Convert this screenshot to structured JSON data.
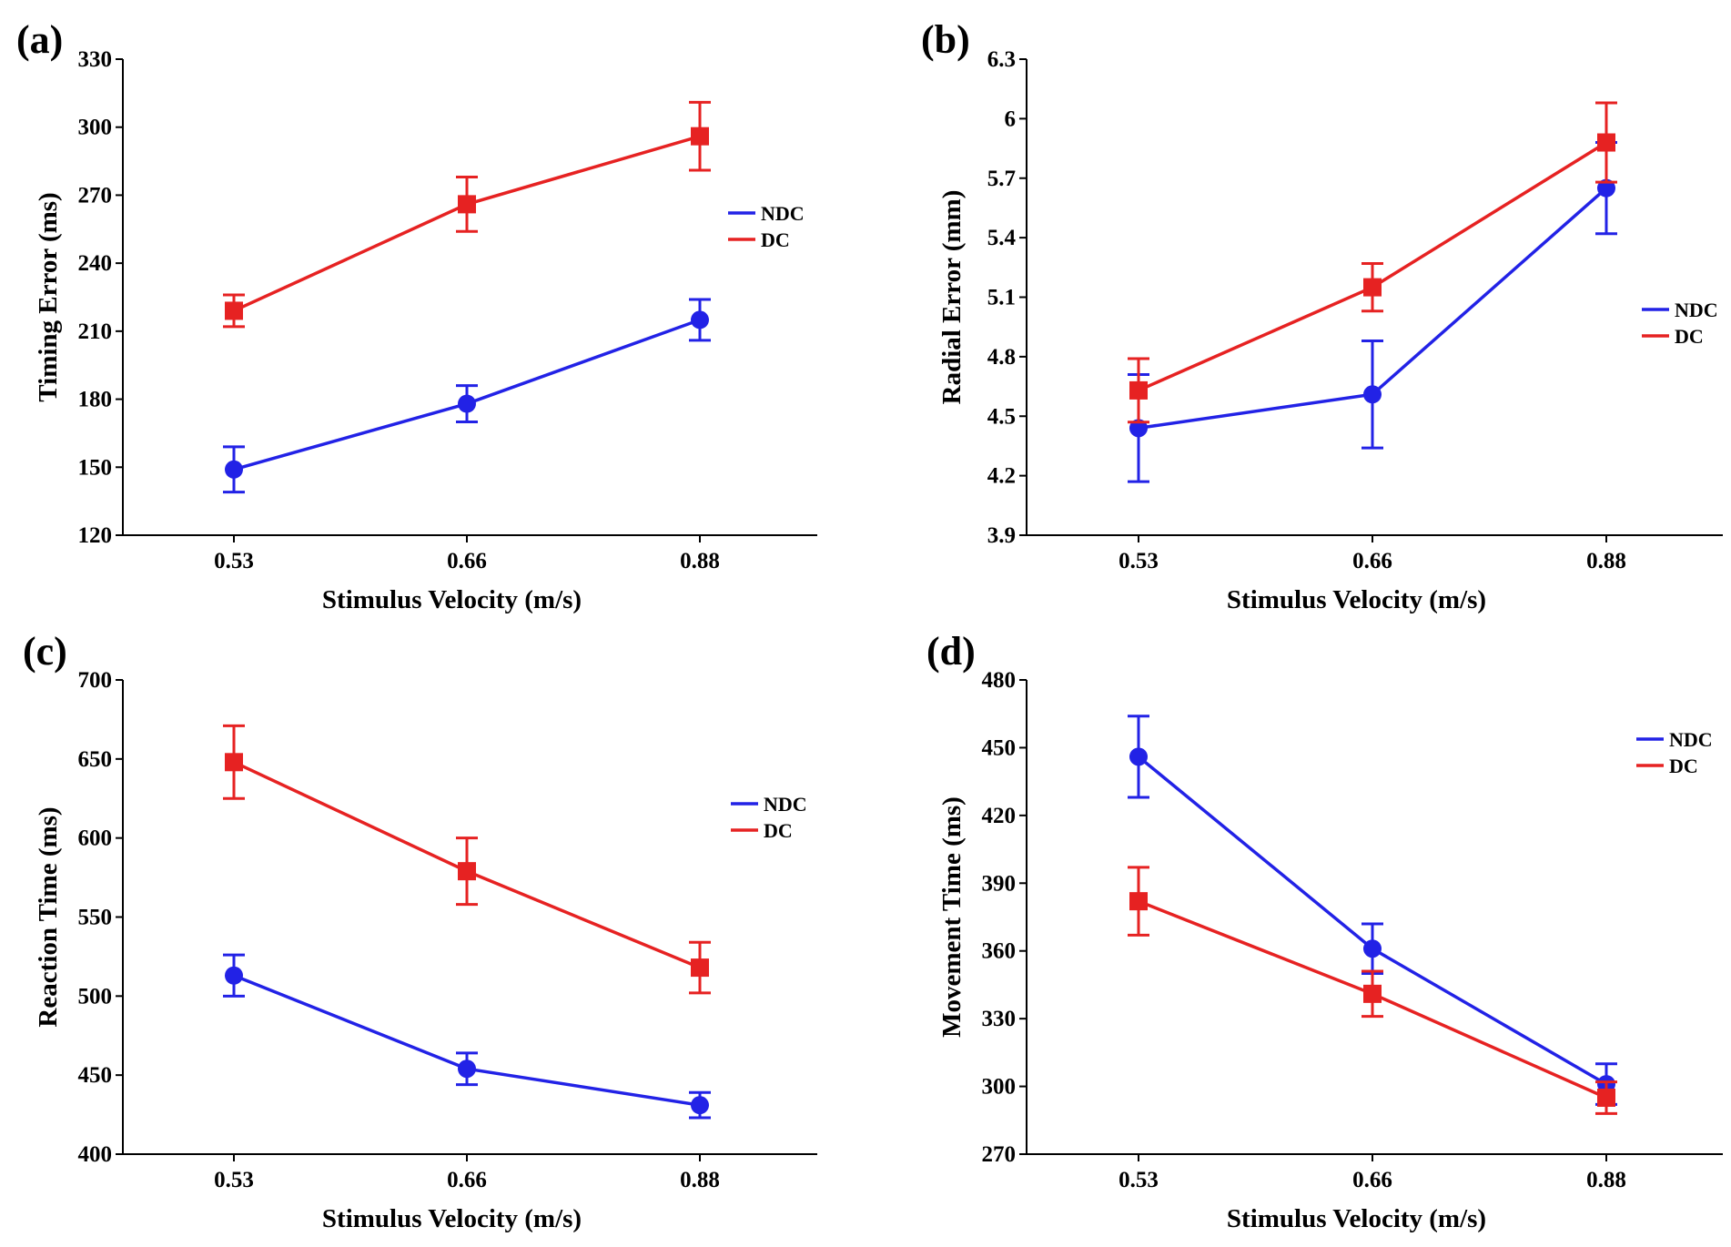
{
  "figure": {
    "shared_x_label": "Stimulus Velocity (m/s)",
    "colors": {
      "NDC": "#2222e6",
      "DC": "#e62222"
    }
  },
  "chart_data": [
    {
      "type": "line",
      "panel": "(a)",
      "title": "",
      "xlabel": "Stimulus Velocity (m/s)",
      "ylabel": "Timing Error (ms)",
      "categories": [
        "0.53",
        "0.66",
        "0.88"
      ],
      "ylim": [
        120,
        330
      ],
      "yticks": [
        "120",
        "150",
        "180",
        "210",
        "240",
        "270",
        "300",
        "330"
      ],
      "legend": "right",
      "series": [
        {
          "name": "NDC",
          "marker": "circle",
          "values": [
            149,
            178,
            215
          ],
          "err": [
            10,
            8,
            9
          ]
        },
        {
          "name": "DC",
          "marker": "square",
          "values": [
            219,
            266,
            296
          ],
          "err": [
            7,
            12,
            15
          ]
        }
      ]
    },
    {
      "type": "line",
      "panel": "(b)",
      "title": "",
      "xlabel": "Stimulus Velocity (m/s)",
      "ylabel": "Radial Error (mm)",
      "categories": [
        "0.53",
        "0.66",
        "0.88"
      ],
      "ylim": [
        3.9,
        6.3
      ],
      "yticks": [
        "3.9",
        "4.2",
        "4.5",
        "4.8",
        "5.1",
        "5.4",
        "5.7",
        "6",
        "6.3"
      ],
      "legend": "right",
      "series": [
        {
          "name": "NDC",
          "marker": "circle",
          "values": [
            4.44,
            4.61,
            5.65
          ],
          "err": [
            0.27,
            0.27,
            0.23
          ]
        },
        {
          "name": "DC",
          "marker": "square",
          "values": [
            4.63,
            5.15,
            5.88
          ],
          "err": [
            0.16,
            0.12,
            0.2
          ]
        }
      ]
    },
    {
      "type": "line",
      "panel": "(c)",
      "title": "",
      "xlabel": "Stimulus Velocity (m/s)",
      "ylabel": "Reaction Time (ms)",
      "categories": [
        "0.53",
        "0.66",
        "0.88"
      ],
      "ylim": [
        400,
        700
      ],
      "yticks": [
        "400",
        "450",
        "500",
        "550",
        "600",
        "650",
        "700"
      ],
      "legend": "right",
      "series": [
        {
          "name": "NDC",
          "marker": "circle",
          "values": [
            513,
            454,
            431
          ],
          "err": [
            13,
            10,
            8
          ]
        },
        {
          "name": "DC",
          "marker": "square",
          "values": [
            648,
            579,
            518
          ],
          "err": [
            23,
            21,
            16
          ]
        }
      ]
    },
    {
      "type": "line",
      "panel": "(d)",
      "title": "",
      "xlabel": "Stimulus Velocity (m/s)",
      "ylabel": "Movement Time (ms)",
      "categories": [
        "0.53",
        "0.66",
        "0.88"
      ],
      "ylim": [
        270,
        480
      ],
      "yticks": [
        "270",
        "300",
        "330",
        "360",
        "390",
        "420",
        "450",
        "480"
      ],
      "legend": "top-right",
      "series": [
        {
          "name": "NDC",
          "marker": "circle",
          "values": [
            446,
            361,
            301
          ],
          "err": [
            18,
            11,
            9
          ]
        },
        {
          "name": "DC",
          "marker": "square",
          "values": [
            382,
            341,
            295
          ],
          "err": [
            15,
            10,
            7
          ]
        }
      ]
    }
  ]
}
